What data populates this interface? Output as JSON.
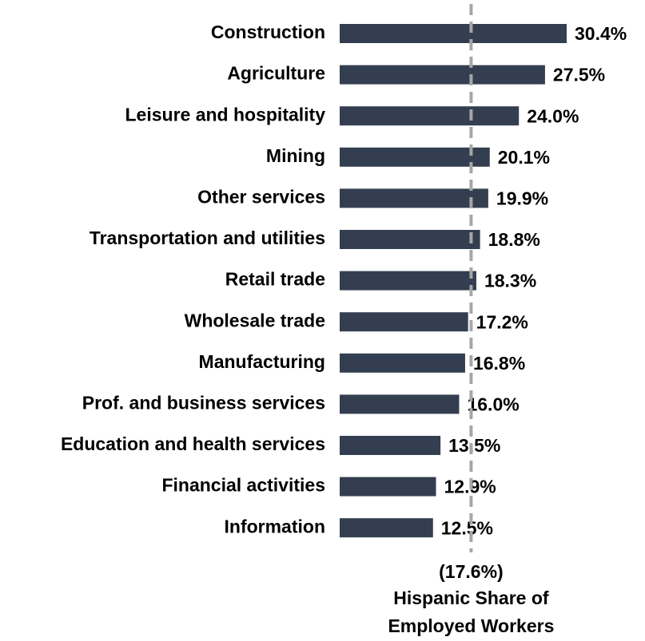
{
  "chart_data": {
    "type": "bar",
    "orientation": "horizontal",
    "categories": [
      "Construction",
      "Agriculture",
      "Leisure and hospitality",
      "Mining",
      "Other services",
      "Transportation and utilities",
      "Retail trade",
      "Wholesale trade",
      "Manufacturing",
      "Prof. and business services",
      "Education and health services",
      "Financial activities",
      "Information"
    ],
    "values": [
      30.4,
      27.5,
      24.0,
      20.1,
      19.9,
      18.8,
      18.3,
      17.2,
      16.8,
      16.0,
      13.5,
      12.9,
      12.5
    ],
    "value_labels": [
      "30.4%",
      "27.5%",
      "24.0%",
      "20.1%",
      "19.9%",
      "18.8%",
      "18.3%",
      "17.2%",
      "16.8%",
      "16.0%",
      "13.5%",
      "12.9%",
      "12.5%"
    ],
    "color": "#333f50",
    "reference_line": {
      "value": 17.6,
      "label": "(17.6%)",
      "text": [
        "Hispanic Share of",
        "Employed Workers"
      ],
      "color": "#a6a6a6"
    }
  }
}
